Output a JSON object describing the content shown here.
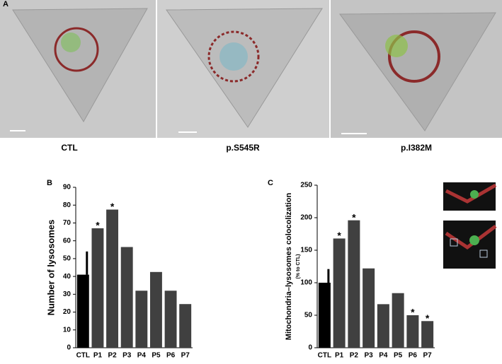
{
  "panel_labels": {
    "a": "A",
    "b": "B",
    "c": "C"
  },
  "image_captions": [
    "CTL",
    "p.S545R",
    "p.I382M"
  ],
  "chart_data": [
    {
      "type": "bar",
      "ylabel": "Number of lysosomes",
      "categories": [
        "CTL",
        "P1",
        "P2",
        "P3",
        "P4",
        "P5",
        "P6",
        "P7"
      ],
      "values": [
        41,
        67,
        77.5,
        56.5,
        32,
        42.5,
        32,
        24.5
      ],
      "errors": [
        13,
        null,
        null,
        null,
        null,
        null,
        null,
        null
      ],
      "value_annotations": [
        null,
        "*",
        "*",
        null,
        null,
        null,
        null,
        null
      ],
      "colors": [
        "#000000",
        "#404040",
        "#404040",
        "#404040",
        "#404040",
        "#404040",
        "#404040",
        "#404040"
      ],
      "ylim": [
        0,
        90
      ],
      "yticks": [
        0,
        10,
        20,
        30,
        40,
        50,
        60,
        70,
        80,
        90
      ]
    },
    {
      "type": "bar",
      "ylabel": "Mitochondria–lysosomes colocolization",
      "ylabel_sub": "(% to CTL)",
      "categories": [
        "CTL",
        "P1",
        "P2",
        "P3",
        "P4",
        "P5",
        "P6",
        "P7"
      ],
      "values": [
        100,
        168,
        196,
        122,
        67,
        84,
        50,
        41
      ],
      "errors": [
        21,
        null,
        null,
        null,
        null,
        null,
        null,
        null
      ],
      "value_annotations": [
        null,
        "*",
        "*",
        null,
        null,
        null,
        "*",
        "*"
      ],
      "colors": [
        "#000000",
        "#404040",
        "#404040",
        "#404040",
        "#404040",
        "#404040",
        "#404040",
        "#404040"
      ],
      "ylim": [
        0,
        250
      ],
      "yticks": [
        0,
        50,
        100,
        150,
        200,
        250
      ]
    }
  ]
}
